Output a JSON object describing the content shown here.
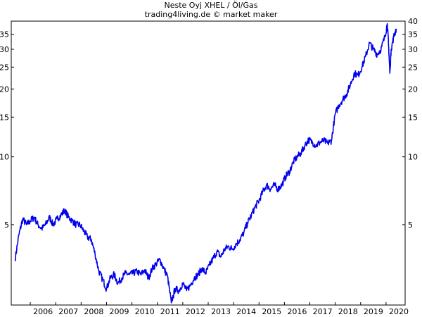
{
  "chart_data": {
    "type": "line",
    "title": "Neste Oyj XHEL / Öl/Gas",
    "subtitle": "trading4living.de © market maker",
    "xlabel": "",
    "ylabel": "",
    "y_scale": "log",
    "ylim": [
      2.2,
      40
    ],
    "grid": false,
    "legend": "none",
    "line_color": "#0000ee",
    "x_ticks": [
      "2006",
      "2007",
      "2008",
      "2009",
      "2010",
      "2011",
      "2012",
      "2013",
      "2014",
      "2015",
      "2016",
      "2017",
      "2018",
      "2019",
      "2020"
    ],
    "y_ticks_left": [
      "35",
      "30",
      "25",
      "20",
      "15",
      "10",
      "5"
    ],
    "y_ticks_right": [
      "40",
      "35",
      "30",
      "25",
      "20",
      "15",
      "10",
      "5"
    ],
    "series": [
      {
        "x": [
          2005.4,
          2005.55,
          2005.7,
          2005.85,
          2006.0,
          2006.15,
          2006.3,
          2006.45,
          2006.6,
          2006.75,
          2006.9,
          2007.05,
          2007.2,
          2007.35,
          2007.5,
          2007.65,
          2007.8,
          2007.95,
          2008.1,
          2008.25,
          2008.4,
          2008.55,
          2008.7,
          2008.85,
          2009.0,
          2009.15,
          2009.3,
          2009.45,
          2009.6,
          2009.75,
          2009.9,
          2010.05,
          2010.2,
          2010.35,
          2010.5,
          2010.65,
          2010.8,
          2010.95,
          2011.1,
          2011.25,
          2011.4,
          2011.55,
          2011.7,
          2011.85,
          2012.0,
          2012.15,
          2012.3,
          2012.45,
          2012.6,
          2012.75,
          2012.9,
          2013.05,
          2013.2,
          2013.35,
          2013.5,
          2013.65,
          2013.8,
          2013.95,
          2014.1,
          2014.25,
          2014.4,
          2014.55,
          2014.7,
          2014.85,
          2015.0,
          2015.15,
          2015.3,
          2015.45,
          2015.6,
          2015.75,
          2015.9,
          2016.05,
          2016.2,
          2016.35,
          2016.5,
          2016.65,
          2016.8,
          2016.95,
          2017.1,
          2017.25,
          2017.4,
          2017.55,
          2017.7,
          2017.85,
          2018.0,
          2018.15,
          2018.3,
          2018.45,
          2018.6,
          2018.75,
          2018.9,
          2019.05,
          2019.2,
          2019.35,
          2019.5,
          2019.65,
          2019.8,
          2019.95,
          2020.05,
          2020.1,
          2020.15,
          2020.2,
          2020.3,
          2020.4
        ],
        "values": [
          3.5,
          4.5,
          5.3,
          5.0,
          5.2,
          5.4,
          5.0,
          4.8,
          5.0,
          5.4,
          5.0,
          5.3,
          5.5,
          5.8,
          5.4,
          5.2,
          5.0,
          5.0,
          4.7,
          4.4,
          4.3,
          3.7,
          3.1,
          2.85,
          2.6,
          2.9,
          3.0,
          2.75,
          2.9,
          3.05,
          3.0,
          3.05,
          3.1,
          3.0,
          3.15,
          2.9,
          3.2,
          3.35,
          3.5,
          3.2,
          2.95,
          2.25,
          2.6,
          2.55,
          2.75,
          2.55,
          2.7,
          2.9,
          3.0,
          3.2,
          3.05,
          3.3,
          3.55,
          3.8,
          3.6,
          3.9,
          4.0,
          3.9,
          4.1,
          4.3,
          4.6,
          5.1,
          5.5,
          6.0,
          6.4,
          7.0,
          7.5,
          7.2,
          7.5,
          7.2,
          7.5,
          8.2,
          8.6,
          9.5,
          10.0,
          10.4,
          11.2,
          11.9,
          11.6,
          11.2,
          11.6,
          11.8,
          11.5,
          11.8,
          15.5,
          17.0,
          18.0,
          19.0,
          21.0,
          23.5,
          23.0,
          25.0,
          28.0,
          32.0,
          30.0,
          28.5,
          30.0,
          34.0,
          39.0,
          31.0,
          23.5,
          30.0,
          34.0,
          37.0
        ]
      }
    ]
  }
}
